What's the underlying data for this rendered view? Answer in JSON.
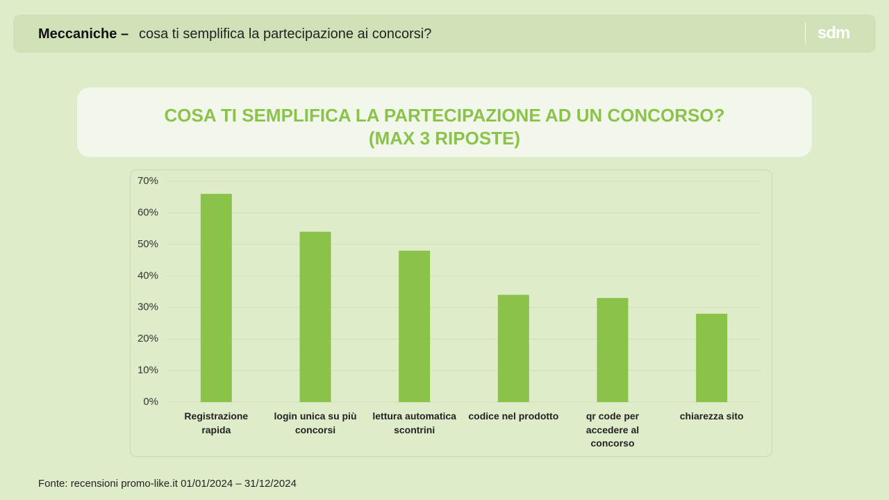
{
  "header": {
    "title": "Meccaniche –",
    "subtitle": "cosa ti semplifica la partecipazione ai concorsi?",
    "logo": "sdm"
  },
  "chart_data": {
    "type": "bar",
    "title": "COSA TI SEMPLIFICA LA PARTECIPAZIONE AD UN CONCORSO?\n(MAX 3 RIPOSTE)",
    "categories": [
      "Registrazione rapida",
      "login unica su più concorsi",
      "lettura automatica scontrini",
      "codice nel prodotto",
      "qr code per accedere al concorso",
      "chiarezza sito"
    ],
    "values": [
      66,
      54,
      48,
      34,
      33,
      28
    ],
    "color": "#8bc34a",
    "ylim": [
      0,
      70
    ],
    "yticks": [
      {
        "value": 0,
        "label": "0%"
      },
      {
        "value": 10,
        "label": "10%"
      },
      {
        "value": 20,
        "label": "20%"
      },
      {
        "value": 30,
        "label": "30%"
      },
      {
        "value": 40,
        "label": "40%"
      },
      {
        "value": 50,
        "label": "50%"
      },
      {
        "value": 60,
        "label": "60%"
      },
      {
        "value": 70,
        "label": "70%"
      }
    ],
    "grid": true
  },
  "footer": {
    "source": "Fonte: recensioni promo-like.it 01/01/2024 – 31/12/2024"
  }
}
